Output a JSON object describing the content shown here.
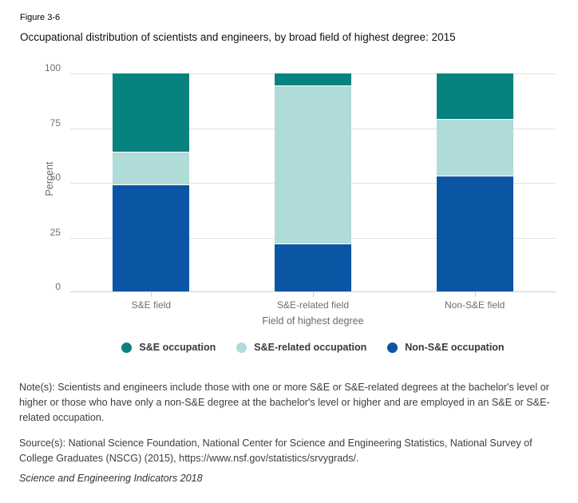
{
  "figure": {
    "label": "Figure 3-6",
    "title": "Occupational distribution of scientists and engineers, by broad field of highest degree: 2015"
  },
  "chart_data": {
    "type": "bar",
    "stacked": true,
    "title": "Occupational distribution of scientists and engineers, by broad field of highest degree: 2015",
    "categories": [
      "S&E field",
      "S&E-related field",
      "Non-S&E field"
    ],
    "series": [
      {
        "name": "S&E occupation",
        "color": "#08827E",
        "values": [
          36,
          6,
          21
        ]
      },
      {
        "name": "S&E-related occupation",
        "color": "#AFDBD8",
        "values": [
          15,
          72,
          26
        ]
      },
      {
        "name": "Non-S&E occupation",
        "color": "#0B56A4",
        "values": [
          49,
          22,
          53
        ]
      }
    ],
    "stack_order_bottom_to_top": [
      "Non-S&E occupation",
      "S&E-related occupation",
      "S&E occupation"
    ],
    "xlabel": "Field of highest degree",
    "ylabel": "Percent",
    "ylim": [
      0,
      100
    ],
    "yticks": [
      0,
      25,
      50,
      75,
      100
    ],
    "grid": true,
    "legend_position": "bottom",
    "colors": {
      "gridline": "#e1e1e1",
      "axis": "#c7d3e4"
    }
  },
  "notes": "Note(s): Scientists and engineers include those with one or more S&E or S&E-related degrees at the bachelor's level or higher or those who have only a non-S&E degree at the bachelor's level or higher and are employed in an S&E or S&E-related occupation.",
  "source": "Source(s): National Science Foundation, National Center for Science and Engineering Statistics, National Survey of College Graduates (NSCG) (2015), https://www.nsf.gov/statistics/srvygrads/.",
  "footer": "Science and Engineering Indicators 2018"
}
